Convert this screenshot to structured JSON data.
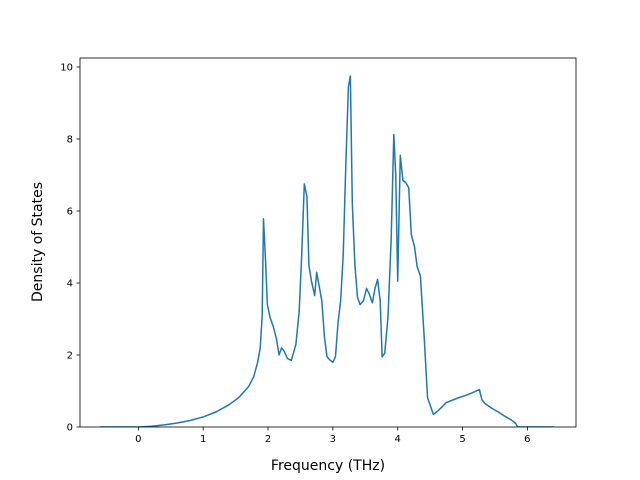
{
  "chart_data": {
    "type": "line",
    "title": "",
    "xlabel": "Frequency (THz)",
    "ylabel": "Density of States",
    "xlim": [
      -0.9,
      6.75
    ],
    "ylim": [
      0,
      10.25
    ],
    "xticks": [
      0,
      1,
      2,
      3,
      4,
      5,
      6
    ],
    "yticks": [
      0,
      2,
      4,
      6,
      8,
      10
    ],
    "grid": false,
    "legend": "none",
    "colors": {
      "line": "#1f77b4",
      "axes": "#000000",
      "background": "#ffffff"
    },
    "series": [
      {
        "x": [
          -0.59,
          -0.3,
          0.0,
          0.2,
          0.4,
          0.6,
          0.8,
          1.0,
          1.2,
          1.4,
          1.55,
          1.7,
          1.78,
          1.84,
          1.88,
          1.91,
          1.93,
          1.96,
          1.99,
          2.03,
          2.08,
          2.13,
          2.17,
          2.21,
          2.25,
          2.3,
          2.36,
          2.43,
          2.48,
          2.52,
          2.56,
          2.6,
          2.63,
          2.67,
          2.72,
          2.75,
          2.79,
          2.83,
          2.87,
          2.91,
          2.96,
          3.0,
          3.04,
          3.08,
          3.12,
          3.16,
          3.2,
          3.24,
          3.27,
          3.3,
          3.34,
          3.38,
          3.42,
          3.47,
          3.52,
          3.56,
          3.61,
          3.65,
          3.69,
          3.73,
          3.76,
          3.8,
          3.85,
          3.9,
          3.94,
          3.97,
          4.0,
          4.04,
          4.08,
          4.12,
          4.17,
          4.21,
          4.26,
          4.3,
          4.35,
          4.41,
          4.46,
          4.55,
          4.62,
          4.68,
          4.75,
          4.85,
          4.95,
          5.05,
          5.15,
          5.26,
          5.3,
          5.35,
          5.45,
          5.55,
          5.65,
          5.75,
          5.82,
          5.85,
          5.9,
          6.1,
          6.41
        ],
        "y": [
          0.0,
          0.0,
          0.0,
          0.02,
          0.06,
          0.11,
          0.18,
          0.28,
          0.42,
          0.62,
          0.82,
          1.12,
          1.4,
          1.8,
          2.2,
          3.1,
          5.78,
          4.7,
          3.4,
          3.05,
          2.8,
          2.45,
          2.0,
          2.2,
          2.1,
          1.9,
          1.85,
          2.3,
          3.2,
          4.8,
          6.75,
          6.4,
          4.5,
          4.05,
          3.65,
          4.3,
          3.9,
          3.5,
          2.5,
          1.95,
          1.85,
          1.8,
          1.95,
          2.9,
          3.5,
          4.8,
          7.3,
          9.45,
          9.75,
          6.2,
          4.5,
          3.6,
          3.4,
          3.5,
          3.85,
          3.7,
          3.45,
          3.85,
          4.1,
          3.5,
          1.95,
          2.05,
          3.05,
          5.25,
          8.12,
          7.0,
          4.05,
          7.55,
          6.85,
          6.8,
          6.65,
          5.35,
          5.0,
          4.45,
          4.2,
          2.45,
          0.82,
          0.35,
          0.45,
          0.55,
          0.68,
          0.75,
          0.82,
          0.88,
          0.95,
          1.04,
          0.75,
          0.65,
          0.52,
          0.42,
          0.3,
          0.2,
          0.1,
          0.0,
          0.0,
          0.0,
          0.0
        ]
      }
    ]
  }
}
